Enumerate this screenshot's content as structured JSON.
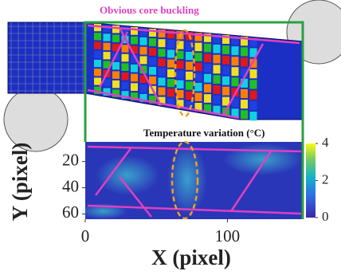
{
  "chart_data": {
    "type": "image",
    "annotation": "Obvious core buckling",
    "colorbar_label": "Temperature variation (°C)",
    "xlabel": "X (pixel)",
    "ylabel": "Y (pixel)",
    "xlim": [
      0,
      153
    ],
    "xticks": [
      0,
      100
    ],
    "ylim": [
      5,
      64
    ],
    "yticks": [
      20,
      40,
      60
    ],
    "clim": [
      0,
      4
    ],
    "cticks": [
      0,
      2,
      4
    ]
  }
}
